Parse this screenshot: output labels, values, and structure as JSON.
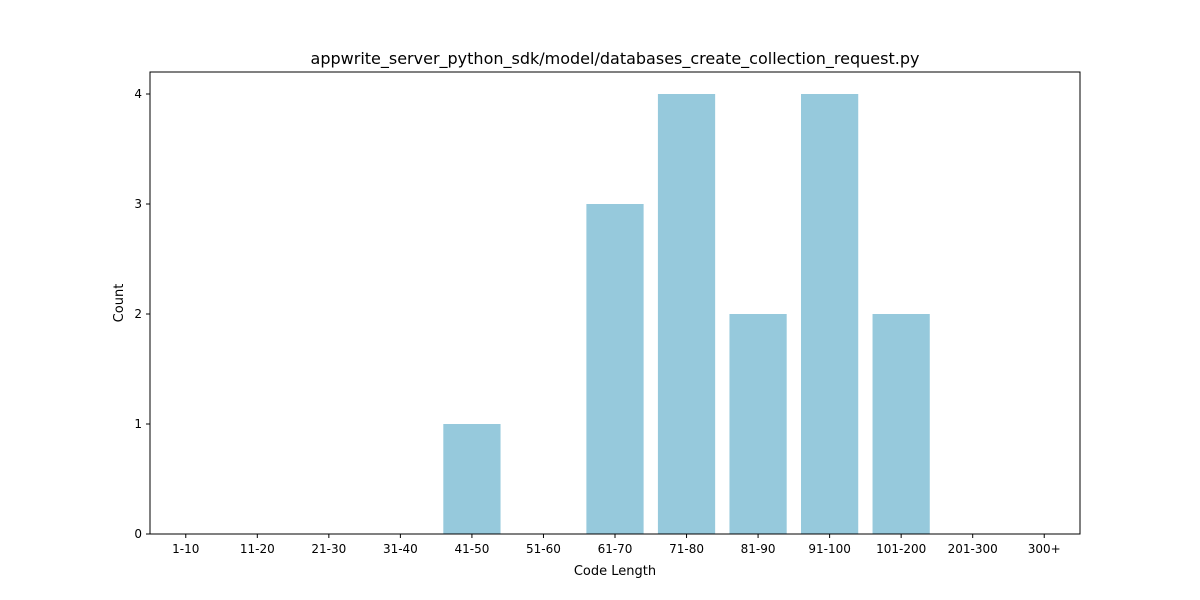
{
  "chart_data": {
    "type": "bar",
    "title": "appwrite_server_python_sdk/model/databases_create_collection_request.py",
    "xlabel": "Code Length",
    "ylabel": "Count",
    "categories": [
      "1-10",
      "11-20",
      "21-30",
      "31-40",
      "41-50",
      "51-60",
      "61-70",
      "71-80",
      "81-90",
      "91-100",
      "101-200",
      "201-300",
      "300+"
    ],
    "values": [
      0,
      0,
      0,
      0,
      1,
      0,
      3,
      4,
      2,
      4,
      2,
      0,
      0
    ],
    "ylim": [
      0,
      4.2
    ],
    "yticks": [
      0,
      1,
      2,
      3,
      4
    ],
    "grid": false,
    "bar_color": "#96c9dc"
  }
}
